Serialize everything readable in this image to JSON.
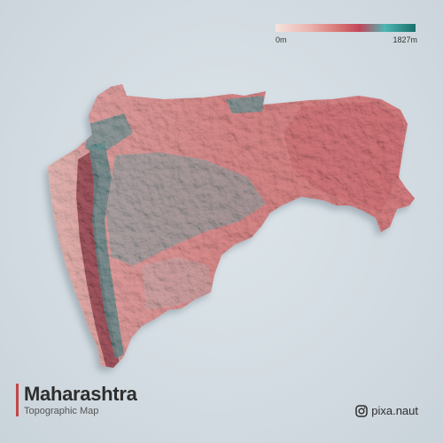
{
  "title": "Maharashtra",
  "subtitle": "Topographic Map",
  "legend": {
    "min_label": "0m",
    "max_label": "1827m"
  },
  "credit": {
    "handle": "pixa.naut",
    "icon": "instagram-icon"
  },
  "colors": {
    "accent": "#c04848",
    "low": "#f6e3de",
    "mid": "#d87674",
    "high": "#1a6f6a"
  }
}
